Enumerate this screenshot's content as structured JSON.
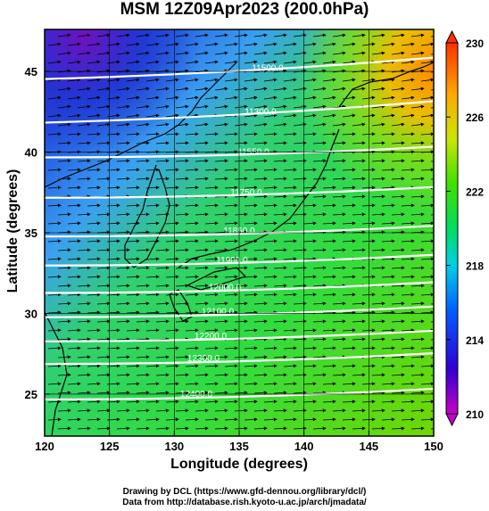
{
  "title": "MSM 12Z09Apr2023 (200.0hPa)",
  "xlabel": "Longitude (degrees)",
  "ylabel": "Latitude  (degrees)",
  "credits": {
    "line1": "Drawing by DCL (https://www.gfd-dennou.org/library/dcl/)",
    "line2": "Data from http://database.rish.kyoto-u.ac.jp/arch/jmadata/"
  },
  "chart_data": {
    "type": "heatmap",
    "xlim": [
      120,
      150
    ],
    "ylim": [
      22.4,
      47.6
    ],
    "x_ticks": [
      120,
      125,
      130,
      135,
      140,
      145,
      150
    ],
    "y_ticks": [
      25,
      30,
      35,
      40,
      45
    ],
    "grid": true,
    "colorbar": {
      "min": 210,
      "max": 230,
      "ticks": [
        210,
        214,
        218,
        222,
        226,
        230
      ],
      "colors": [
        "#c800c8",
        "#0000c8",
        "#0096ff",
        "#00e6e6",
        "#00dc50",
        "#78e600",
        "#e6e600",
        "#ffaa00",
        "#ff4600"
      ]
    },
    "contours": [
      {
        "label": "11500.0",
        "lat": 45.3
      },
      {
        "label": "11300.0",
        "lat": 42.6
      },
      {
        "label": "11550.0",
        "lat": 40.0
      },
      {
        "label": "11750.0",
        "lat": 37.5
      },
      {
        "label": "11850.0",
        "lat": 35.1
      },
      {
        "label": "11900.0",
        "lat": 33.3
      },
      {
        "label": "12000.0",
        "lat": 31.6
      },
      {
        "label": "12100.0",
        "lat": 30.1
      },
      {
        "label": "12200.0",
        "lat": 28.6
      },
      {
        "label": "12300.0",
        "lat": 27.2
      },
      {
        "label": "12400.0",
        "lat": 25.0
      }
    ]
  },
  "colors": {
    "contour": "#ffffff",
    "frame": "#000000",
    "vector": "#000000",
    "coast": "#000000"
  }
}
